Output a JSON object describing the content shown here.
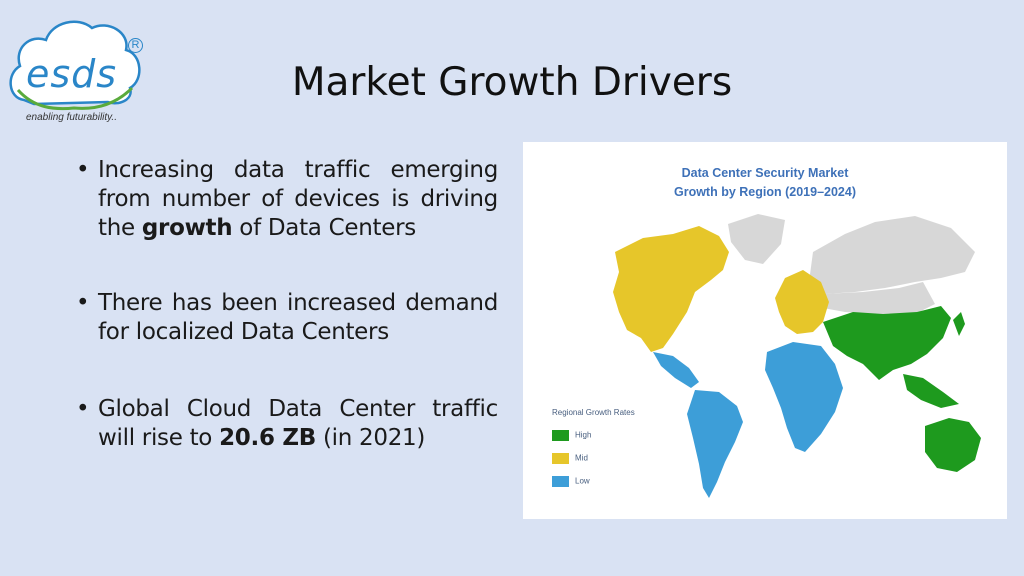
{
  "logo": {
    "word": "esds",
    "registered": "R",
    "tagline": "enabling futurability.."
  },
  "title": "Market Growth Drivers",
  "bullets": [
    {
      "pre": "Increasing data traffic emerging from number of devices is driving the ",
      "bold": "growth",
      "post": " of Data Centers"
    },
    {
      "pre": "There has been increased demand for localized Data Centers",
      "bold": "",
      "post": ""
    },
    {
      "pre": "Global Cloud Data Center traffic will rise to ",
      "bold": "20.6 ZB",
      "post": " (in 2021)"
    }
  ],
  "map": {
    "title_line1": "Data Center Security Market",
    "title_line2": "Growth by Region (2019–2024)",
    "legend_title": "Regional Growth Rates",
    "legend": [
      {
        "label": "High",
        "color": "#1e9a1e"
      },
      {
        "label": "Mid",
        "color": "#e6c62a"
      },
      {
        "label": "Low",
        "color": "#3d9ed8"
      }
    ],
    "colors": {
      "high": "#1e9a1e",
      "mid": "#e6c62a",
      "low": "#3d9ed8",
      "none": "#d7d7d7"
    }
  }
}
